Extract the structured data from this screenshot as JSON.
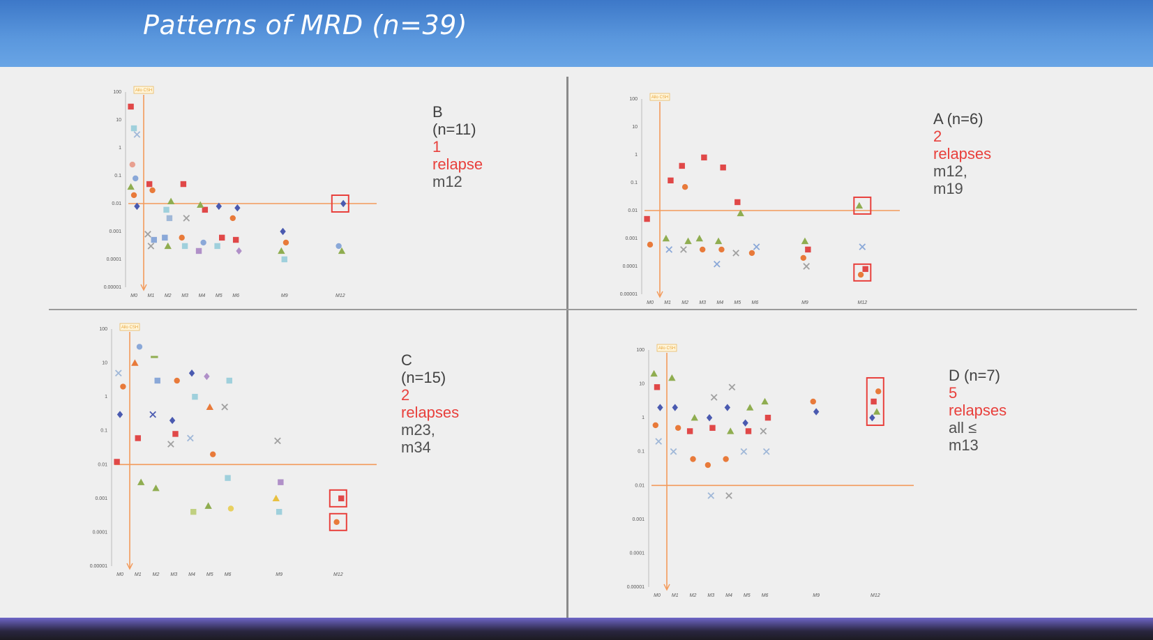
{
  "slide": {
    "title": "Patterns of MRD (n=39)",
    "colors": {
      "header": "#4f8cd8",
      "threshold": "#f39a5a",
      "relapse_box": "#e8403c"
    }
  },
  "chart_data": [
    {
      "id": "B",
      "type": "scatter",
      "title": "B (n=11)",
      "annotation": {
        "relapses": "1 relapse",
        "timing": "m12"
      },
      "yscale": "log",
      "ylim": [
        1e-05,
        100
      ],
      "yticks": [
        "100",
        "10",
        "1",
        "0.1",
        "0.01",
        "0.001",
        "0.0001",
        "0.00001"
      ],
      "xticks": [
        "M0",
        "M1",
        "M2",
        "M3",
        "M4",
        "M5",
        "M6",
        "M9",
        "M12"
      ],
      "marker_label": "Allo CSH",
      "threshold": 0.01,
      "relapse_boxes": [
        {
          "x": "M12",
          "y": 0.01
        }
      ],
      "points": [
        {
          "x": "M0",
          "y": 30,
          "c": "#e04848",
          "m": "s"
        },
        {
          "x": "M0",
          "y": 5,
          "c": "#9fd0dc",
          "m": "s"
        },
        {
          "x": "M0",
          "y": 3,
          "c": "#a0b8d8",
          "m": "x"
        },
        {
          "x": "M0",
          "y": 0.25,
          "c": "#e8a090",
          "m": "o"
        },
        {
          "x": "M0",
          "y": 0.08,
          "c": "#8aa8d8",
          "m": "o"
        },
        {
          "x": "M0",
          "y": 0.04,
          "c": "#8fad50",
          "m": "t"
        },
        {
          "x": "M0",
          "y": 0.02,
          "c": "#e87a3a",
          "m": "o"
        },
        {
          "x": "M0",
          "y": 0.008,
          "c": "#4a5ab0",
          "m": "d"
        },
        {
          "x": "M1",
          "y": 0.05,
          "c": "#e04848",
          "m": "s"
        },
        {
          "x": "M1",
          "y": 0.03,
          "c": "#e87a3a",
          "m": "o"
        },
        {
          "x": "M1",
          "y": 0.0008,
          "c": "#a0a0a0",
          "m": "x"
        },
        {
          "x": "M1",
          "y": 0.0003,
          "c": "#a0a0a0",
          "m": "x"
        },
        {
          "x": "M1",
          "y": 0.0005,
          "c": "#8aa8d8",
          "m": "s"
        },
        {
          "x": "M2",
          "y": 0.006,
          "c": "#9fd0dc",
          "m": "s"
        },
        {
          "x": "M2",
          "y": 0.003,
          "c": "#a0b8d8",
          "m": "s"
        },
        {
          "x": "M2",
          "y": 0.0006,
          "c": "#8aa8d8",
          "m": "s"
        },
        {
          "x": "M2",
          "y": 0.0003,
          "c": "#8fad50",
          "m": "t"
        },
        {
          "x": "M2",
          "y": 0.012,
          "c": "#8fad50",
          "m": "t"
        },
        {
          "x": "M3",
          "y": 0.05,
          "c": "#e04848",
          "m": "s"
        },
        {
          "x": "M3",
          "y": 0.003,
          "c": "#a0a0a0",
          "m": "x"
        },
        {
          "x": "M3",
          "y": 0.0006,
          "c": "#e87a3a",
          "m": "o"
        },
        {
          "x": "M3",
          "y": 0.0003,
          "c": "#9fd0dc",
          "m": "s"
        },
        {
          "x": "M4",
          "y": 0.006,
          "c": "#e04848",
          "m": "s"
        },
        {
          "x": "M4",
          "y": 0.009,
          "c": "#8fad50",
          "m": "t"
        },
        {
          "x": "M4",
          "y": 0.0004,
          "c": "#8aa8d8",
          "m": "o"
        },
        {
          "x": "M4",
          "y": 0.0002,
          "c": "#b090c8",
          "m": "s"
        },
        {
          "x": "M5",
          "y": 0.008,
          "c": "#4a5ab0",
          "m": "d"
        },
        {
          "x": "M5",
          "y": 0.0006,
          "c": "#e04848",
          "m": "s"
        },
        {
          "x": "M5",
          "y": 0.0003,
          "c": "#9fd0dc",
          "m": "s"
        },
        {
          "x": "M6",
          "y": 0.007,
          "c": "#4a5ab0",
          "m": "d"
        },
        {
          "x": "M6",
          "y": 0.003,
          "c": "#e87a3a",
          "m": "o"
        },
        {
          "x": "M6",
          "y": 0.0005,
          "c": "#e04848",
          "m": "s"
        },
        {
          "x": "M6",
          "y": 0.0002,
          "c": "#b090c8",
          "m": "d"
        },
        {
          "x": "M9",
          "y": 0.001,
          "c": "#4a5ab0",
          "m": "d"
        },
        {
          "x": "M9",
          "y": 0.0004,
          "c": "#e87a3a",
          "m": "o"
        },
        {
          "x": "M9",
          "y": 0.0002,
          "c": "#8fad50",
          "m": "t"
        },
        {
          "x": "M9",
          "y": 0.0001,
          "c": "#9fd0dc",
          "m": "s"
        },
        {
          "x": "M12",
          "y": 0.01,
          "c": "#4a5ab0",
          "m": "d"
        },
        {
          "x": "M12",
          "y": 0.0003,
          "c": "#8aa8d8",
          "m": "o"
        },
        {
          "x": "M12",
          "y": 0.0002,
          "c": "#8fad50",
          "m": "t"
        }
      ]
    },
    {
      "id": "A",
      "type": "scatter",
      "title": "A (n=6)",
      "annotation": {
        "relapses": "2 relapses",
        "timing": "m12, m19"
      },
      "yscale": "log",
      "ylim": [
        1e-05,
        100
      ],
      "yticks": [
        "100",
        "10",
        "1",
        "0.1",
        "0.01",
        "0.001",
        "0.0001",
        "0.00001"
      ],
      "xticks": [
        "M0",
        "M1",
        "M2",
        "M3",
        "M4",
        "M5",
        "M6",
        "M9",
        "M12"
      ],
      "marker_label": "Allo CSH",
      "threshold": 0.01,
      "relapse_boxes": [
        {
          "x": "M12",
          "y": 0.015
        },
        {
          "x": "M12",
          "y": 6e-05
        }
      ],
      "points": [
        {
          "x": "M0",
          "y": 0.005,
          "c": "#e04848",
          "m": "s"
        },
        {
          "x": "M0",
          "y": 0.0006,
          "c": "#e87a3a",
          "m": "o"
        },
        {
          "x": "M1",
          "y": 0.12,
          "c": "#e04848",
          "m": "s"
        },
        {
          "x": "M1",
          "y": 0.001,
          "c": "#8fad50",
          "m": "t"
        },
        {
          "x": "M1",
          "y": 0.0004,
          "c": "#8aa8d8",
          "m": "x"
        },
        {
          "x": "M2",
          "y": 0.4,
          "c": "#e04848",
          "m": "s"
        },
        {
          "x": "M2",
          "y": 0.07,
          "c": "#e87a3a",
          "m": "o"
        },
        {
          "x": "M2",
          "y": 0.0008,
          "c": "#8fad50",
          "m": "t"
        },
        {
          "x": "M2",
          "y": 0.0004,
          "c": "#a0a0a0",
          "m": "x"
        },
        {
          "x": "M3",
          "y": 0.8,
          "c": "#e04848",
          "m": "s"
        },
        {
          "x": "M3",
          "y": 0.001,
          "c": "#8fad50",
          "m": "t"
        },
        {
          "x": "M3",
          "y": 0.0004,
          "c": "#e87a3a",
          "m": "o"
        },
        {
          "x": "M4",
          "y": 0.35,
          "c": "#e04848",
          "m": "s"
        },
        {
          "x": "M4",
          "y": 0.0008,
          "c": "#8fad50",
          "m": "t"
        },
        {
          "x": "M4",
          "y": 0.0004,
          "c": "#e87a3a",
          "m": "o"
        },
        {
          "x": "M4",
          "y": 0.00012,
          "c": "#8aa8d8",
          "m": "x"
        },
        {
          "x": "M5",
          "y": 0.02,
          "c": "#e04848",
          "m": "s"
        },
        {
          "x": "M5",
          "y": 0.008,
          "c": "#8fad50",
          "m": "t"
        },
        {
          "x": "M5",
          "y": 0.0003,
          "c": "#a0a0a0",
          "m": "x"
        },
        {
          "x": "M6",
          "y": 0.0005,
          "c": "#8aa8d8",
          "m": "x"
        },
        {
          "x": "M6",
          "y": 0.0003,
          "c": "#e87a3a",
          "m": "o"
        },
        {
          "x": "M9",
          "y": 0.0008,
          "c": "#8fad50",
          "m": "t"
        },
        {
          "x": "M9",
          "y": 0.0004,
          "c": "#e04848",
          "m": "s"
        },
        {
          "x": "M9",
          "y": 0.0002,
          "c": "#e87a3a",
          "m": "o"
        },
        {
          "x": "M9",
          "y": 0.0001,
          "c": "#a0a0a0",
          "m": "x"
        },
        {
          "x": "M12",
          "y": 0.015,
          "c": "#8fad50",
          "m": "t"
        },
        {
          "x": "M12",
          "y": 0.0005,
          "c": "#8aa8d8",
          "m": "x"
        },
        {
          "x": "M12",
          "y": 8e-05,
          "c": "#e04848",
          "m": "s"
        },
        {
          "x": "M12",
          "y": 5e-05,
          "c": "#e87a3a",
          "m": "o"
        }
      ]
    },
    {
      "id": "C",
      "type": "scatter",
      "title": "C (n=15)",
      "annotation": {
        "relapses": "2 relapses",
        "timing": "m23, m34"
      },
      "yscale": "log",
      "ylim": [
        1e-05,
        100
      ],
      "yticks": [
        "100",
        "10",
        "1",
        "0.1",
        "0.01",
        "0.001",
        "0.0001",
        "0.00001"
      ],
      "xticks": [
        "M0",
        "M1",
        "M2",
        "M3",
        "M4",
        "M5",
        "M6",
        "M9",
        "M12"
      ],
      "marker_label": "Allo CSH",
      "threshold": 0.01,
      "relapse_boxes": [
        {
          "x": "M12",
          "y": 0.001
        },
        {
          "x": "M12",
          "y": 0.0002
        }
      ],
      "points": [
        {
          "x": "M0",
          "y": 0.012,
          "c": "#e04848",
          "m": "s"
        },
        {
          "x": "M0",
          "y": 0.3,
          "c": "#4a5ab0",
          "m": "d"
        },
        {
          "x": "M0",
          "y": 2,
          "c": "#e87a3a",
          "m": "o"
        },
        {
          "x": "M0",
          "y": 5,
          "c": "#a0b8d8",
          "m": "x"
        },
        {
          "x": "M1",
          "y": 30,
          "c": "#8aa8d8",
          "m": "o"
        },
        {
          "x": "M1",
          "y": 10,
          "c": "#e87a3a",
          "m": "t"
        },
        {
          "x": "M1",
          "y": 0.06,
          "c": "#e04848",
          "m": "s"
        },
        {
          "x": "M1",
          "y": 0.003,
          "c": "#8fad50",
          "m": "t"
        },
        {
          "x": "M2",
          "y": 15,
          "c": "#8fad50",
          "m": "m"
        },
        {
          "x": "M2",
          "y": 3,
          "c": "#8aa8d8",
          "m": "s"
        },
        {
          "x": "M2",
          "y": 0.3,
          "c": "#4a5ab0",
          "m": "x"
        },
        {
          "x": "M2",
          "y": 0.002,
          "c": "#8fad50",
          "m": "t"
        },
        {
          "x": "M3",
          "y": 3,
          "c": "#e87a3a",
          "m": "o"
        },
        {
          "x": "M3",
          "y": 0.2,
          "c": "#4a5ab0",
          "m": "d"
        },
        {
          "x": "M3",
          "y": 0.08,
          "c": "#e04848",
          "m": "s"
        },
        {
          "x": "M3",
          "y": 0.04,
          "c": "#a0a0a0",
          "m": "x"
        },
        {
          "x": "M4",
          "y": 5,
          "c": "#4a5ab0",
          "m": "d"
        },
        {
          "x": "M4",
          "y": 1,
          "c": "#9fd0dc",
          "m": "s"
        },
        {
          "x": "M4",
          "y": 0.06,
          "c": "#a0b8d8",
          "m": "x"
        },
        {
          "x": "M4",
          "y": 0.0004,
          "c": "#c0d080",
          "m": "s"
        },
        {
          "x": "M5",
          "y": 4,
          "c": "#b090c8",
          "m": "d"
        },
        {
          "x": "M5",
          "y": 0.5,
          "c": "#e87a3a",
          "m": "t"
        },
        {
          "x": "M5",
          "y": 0.02,
          "c": "#e87a3a",
          "m": "o"
        },
        {
          "x": "M5",
          "y": 0.0006,
          "c": "#8fad50",
          "m": "t"
        },
        {
          "x": "M6",
          "y": 3,
          "c": "#9fd0dc",
          "m": "s"
        },
        {
          "x": "M6",
          "y": 0.5,
          "c": "#a0a0a0",
          "m": "x"
        },
        {
          "x": "M6",
          "y": 0.004,
          "c": "#9fd0dc",
          "m": "s"
        },
        {
          "x": "M6",
          "y": 0.0005,
          "c": "#e8d060",
          "m": "o"
        },
        {
          "x": "M9",
          "y": 0.05,
          "c": "#a0a0a0",
          "m": "x"
        },
        {
          "x": "M9",
          "y": 0.003,
          "c": "#b090c8",
          "m": "s"
        },
        {
          "x": "M9",
          "y": 0.001,
          "c": "#e8c040",
          "m": "t"
        },
        {
          "x": "M9",
          "y": 0.0004,
          "c": "#9fd0dc",
          "m": "s"
        },
        {
          "x": "M12",
          "y": 0.001,
          "c": "#e04848",
          "m": "s"
        },
        {
          "x": "M12",
          "y": 0.0002,
          "c": "#e87a3a",
          "m": "o"
        }
      ]
    },
    {
      "id": "D",
      "type": "scatter",
      "title": "D (n=7)",
      "annotation": {
        "relapses": "5 relapses",
        "timing": "all ≤ m13"
      },
      "yscale": "log",
      "ylim": [
        1e-05,
        100
      ],
      "yticks": [
        "100",
        "10",
        "1",
        "0.1",
        "0.01",
        "0.001",
        "0.0001",
        "0.00001"
      ],
      "xticks": [
        "M0",
        "M1",
        "M2",
        "M3",
        "M4",
        "M5",
        "M6",
        "M9",
        "M12"
      ],
      "marker_label": "Allo CSH",
      "threshold": 0.01,
      "relapse_boxes": [
        {
          "x": "M12",
          "y": 3
        }
      ],
      "points": [
        {
          "x": "M0",
          "y": 20,
          "c": "#8fad50",
          "m": "t"
        },
        {
          "x": "M0",
          "y": 8,
          "c": "#e04848",
          "m": "s"
        },
        {
          "x": "M0",
          "y": 2,
          "c": "#4a5ab0",
          "m": "d"
        },
        {
          "x": "M0",
          "y": 0.6,
          "c": "#e87a3a",
          "m": "o"
        },
        {
          "x": "M0",
          "y": 0.2,
          "c": "#a0b8d8",
          "m": "x"
        },
        {
          "x": "M1",
          "y": 15,
          "c": "#8fad50",
          "m": "t"
        },
        {
          "x": "M1",
          "y": 2,
          "c": "#4a5ab0",
          "m": "d"
        },
        {
          "x": "M1",
          "y": 0.5,
          "c": "#e87a3a",
          "m": "o"
        },
        {
          "x": "M1",
          "y": 0.1,
          "c": "#a0b8d8",
          "m": "x"
        },
        {
          "x": "M2",
          "y": 1,
          "c": "#8fad50",
          "m": "t"
        },
        {
          "x": "M2",
          "y": 0.4,
          "c": "#e04848",
          "m": "s"
        },
        {
          "x": "M2",
          "y": 0.06,
          "c": "#e87a3a",
          "m": "o"
        },
        {
          "x": "M3",
          "y": 4,
          "c": "#a0a0a0",
          "m": "x"
        },
        {
          "x": "M3",
          "y": 1,
          "c": "#4a5ab0",
          "m": "d"
        },
        {
          "x": "M3",
          "y": 0.5,
          "c": "#e04848",
          "m": "s"
        },
        {
          "x": "M3",
          "y": 0.04,
          "c": "#e87a3a",
          "m": "o"
        },
        {
          "x": "M3",
          "y": 0.005,
          "c": "#a0b8d8",
          "m": "x"
        },
        {
          "x": "M4",
          "y": 8,
          "c": "#a0a0a0",
          "m": "x"
        },
        {
          "x": "M4",
          "y": 2,
          "c": "#4a5ab0",
          "m": "d"
        },
        {
          "x": "M4",
          "y": 0.4,
          "c": "#8fad50",
          "m": "t"
        },
        {
          "x": "M4",
          "y": 0.06,
          "c": "#e87a3a",
          "m": "o"
        },
        {
          "x": "M4",
          "y": 0.005,
          "c": "#a0a0a0",
          "m": "x"
        },
        {
          "x": "M5",
          "y": 2,
          "c": "#8fad50",
          "m": "t"
        },
        {
          "x": "M5",
          "y": 0.7,
          "c": "#4a5ab0",
          "m": "d"
        },
        {
          "x": "M5",
          "y": 0.4,
          "c": "#e04848",
          "m": "s"
        },
        {
          "x": "M5",
          "y": 0.1,
          "c": "#a0b8d8",
          "m": "x"
        },
        {
          "x": "M6",
          "y": 3,
          "c": "#8fad50",
          "m": "t"
        },
        {
          "x": "M6",
          "y": 1,
          "c": "#e04848",
          "m": "s"
        },
        {
          "x": "M6",
          "y": 0.4,
          "c": "#a0a0a0",
          "m": "x"
        },
        {
          "x": "M6",
          "y": 0.1,
          "c": "#a0b8d8",
          "m": "x"
        },
        {
          "x": "M9",
          "y": 3,
          "c": "#e87a3a",
          "m": "o"
        },
        {
          "x": "M9",
          "y": 1.5,
          "c": "#4a5ab0",
          "m": "d"
        },
        {
          "x": "M12",
          "y": 6,
          "c": "#e87a3a",
          "m": "o"
        },
        {
          "x": "M12",
          "y": 3,
          "c": "#e04848",
          "m": "s"
        },
        {
          "x": "M12",
          "y": 1.5,
          "c": "#8fad50",
          "m": "t"
        },
        {
          "x": "M12",
          "y": 1,
          "c": "#4a5ab0",
          "m": "d"
        }
      ]
    }
  ]
}
